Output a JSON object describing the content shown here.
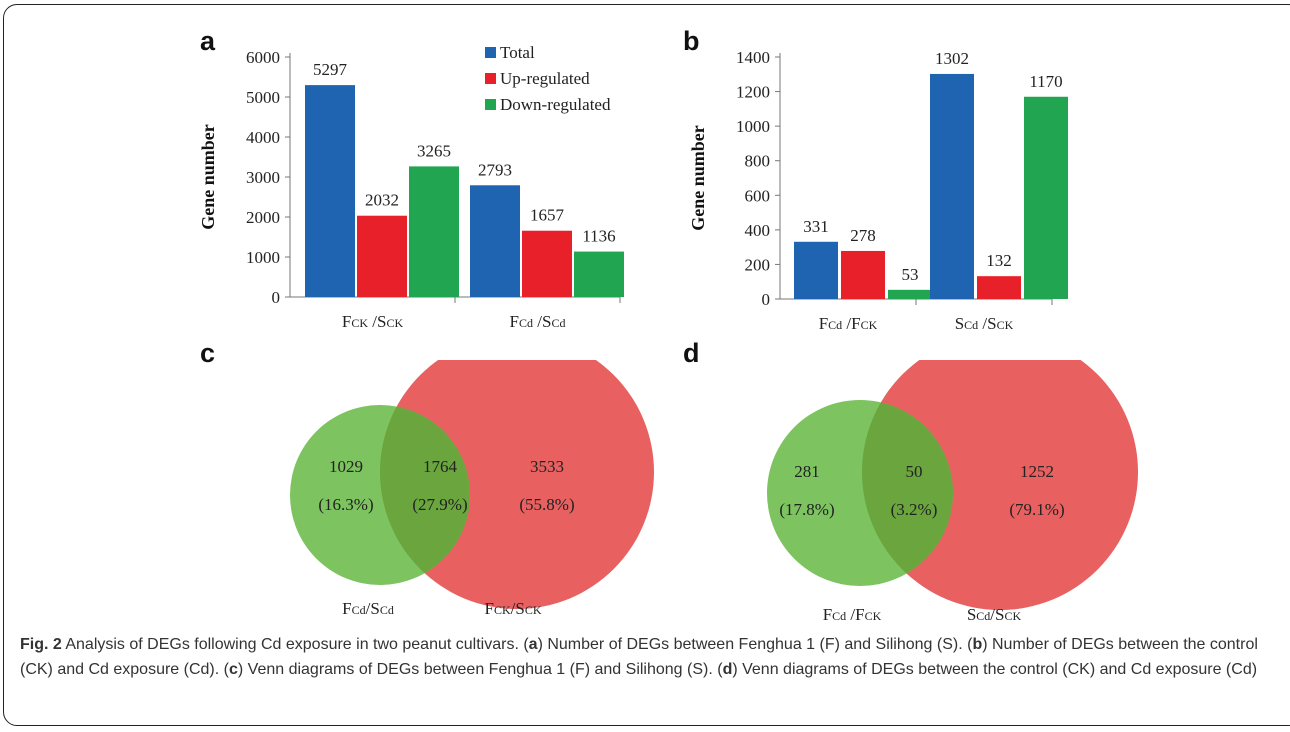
{
  "panels": {
    "a": "a",
    "b": "b",
    "c": "c",
    "d": "d"
  },
  "colors": {
    "total": "#1f64b0",
    "up": "#e8202a",
    "down": "#22a550",
    "venn_green": "#7dc35f",
    "venn_red": "#e86060",
    "venn_overlap": "#6aa53e"
  },
  "chart_data": [
    {
      "type": "bar",
      "panel": "a",
      "categories": [
        "FCK /SCK",
        "FCd /SCd"
      ],
      "series": [
        {
          "name": "Total",
          "values": [
            5297,
            2793
          ]
        },
        {
          "name": "Up-regulated",
          "values": [
            2032,
            1657
          ]
        },
        {
          "name": "Down-regulated",
          "values": [
            3265,
            1136
          ]
        }
      ],
      "ylabel": "Gene number",
      "ylim": [
        0,
        6000
      ],
      "yticks": [
        0,
        1000,
        2000,
        3000,
        4000,
        5000,
        6000
      ],
      "legend": "top-right",
      "grid": false
    },
    {
      "type": "bar",
      "panel": "b",
      "categories": [
        "FCd /FCK",
        "SCd /SCK"
      ],
      "series": [
        {
          "name": "Total",
          "values": [
            331,
            1302
          ]
        },
        {
          "name": "Up-regulated",
          "values": [
            278,
            132
          ]
        },
        {
          "name": "Down-regulated",
          "values": [
            53,
            1170
          ]
        }
      ],
      "ylabel": "Gene number",
      "ylim": [
        0,
        1400
      ],
      "yticks": [
        0,
        200,
        400,
        600,
        800,
        1000,
        1200,
        1400
      ],
      "legend": "none",
      "grid": false
    },
    {
      "type": "venn",
      "panel": "c",
      "sets": [
        "FCd/SCd",
        "FCK/SCK"
      ],
      "regions": [
        {
          "count": "1029",
          "percent": "(16.3%)"
        },
        {
          "count": "1764",
          "percent": "(27.9%)"
        },
        {
          "count": "3533",
          "percent": "(55.8%)"
        }
      ]
    },
    {
      "type": "venn",
      "panel": "d",
      "sets": [
        "FCd /FCK",
        "SCd/SCK"
      ],
      "regions": [
        {
          "count": "281",
          "percent": "(17.8%)"
        },
        {
          "count": "50",
          "percent": "(3.2%)"
        },
        {
          "count": "1252",
          "percent": "(79.1%)"
        }
      ]
    }
  ],
  "caption": {
    "fig_label": "Fig. 2",
    "parts": [
      {
        "t": " Analysis of DEGs following Cd exposure in two peanut cultivars. (",
        "b": false
      },
      {
        "t": "a",
        "b": true
      },
      {
        "t": ") Number of DEGs between Fenghua 1 (F) and Silihong (S). (",
        "b": false
      },
      {
        "t": "b",
        "b": true
      },
      {
        "t": ") Number of DEGs between the control (CK) and Cd exposure (Cd). (",
        "b": false
      },
      {
        "t": "c",
        "b": true
      },
      {
        "t": ") Venn diagrams of DEGs between Fenghua 1 (F) and Silihong (S). (",
        "b": false
      },
      {
        "t": "d",
        "b": true
      },
      {
        "t": ") Venn diagrams of DEGs between the control (CK) and Cd exposure (Cd)",
        "b": false
      }
    ]
  }
}
